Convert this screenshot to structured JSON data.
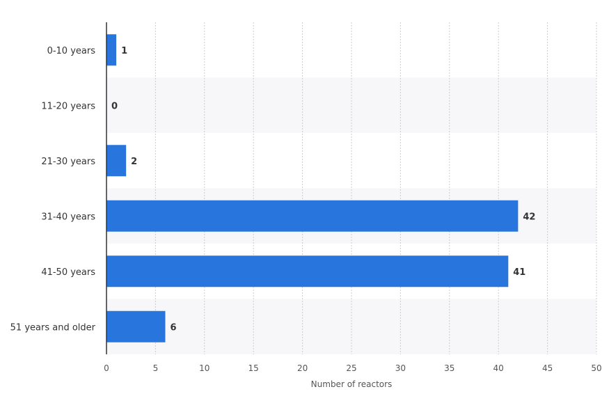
{
  "chart_data": {
    "type": "bar",
    "orientation": "horizontal",
    "categories": [
      "0-10 years",
      "11-20 years",
      "21-30 years",
      "31-40 years",
      "41-50 years",
      "51 years and older"
    ],
    "values": [
      1,
      0,
      2,
      42,
      41,
      6
    ],
    "title": "",
    "xlabel": "Number of reactors",
    "ylabel": "",
    "xlim": [
      0,
      50
    ],
    "x_ticks": [
      "0",
      "5",
      "10",
      "15",
      "20",
      "25",
      "30",
      "35",
      "40",
      "45",
      "50"
    ],
    "grid": "vertical dotted",
    "data_labels": true,
    "legend": "none",
    "colors": {
      "bar": "#2876dd",
      "band": "#f7f7f9",
      "grid": "#cccccc",
      "axis": "#333333"
    }
  }
}
